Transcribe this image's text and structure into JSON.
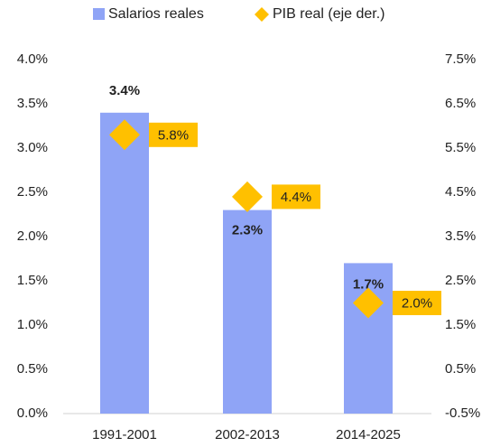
{
  "chart_data": {
    "type": "bar",
    "categories": [
      "1991-2001",
      "2002-2013",
      "2014-2025"
    ],
    "series": [
      {
        "name": "Salarios reales",
        "color": "#8fa4f6",
        "values": [
          3.4,
          2.3,
          1.7
        ],
        "value_labels": [
          "3.4%",
          "2.3%",
          "1.7%"
        ]
      },
      {
        "name": "PIB real (eje der.)",
        "color": "#ffc000",
        "type": "scatter",
        "axis": "y2",
        "values": [
          5.8,
          4.4,
          2.0
        ],
        "value_labels": [
          "5.8%",
          "4.4%",
          "2.0%"
        ]
      }
    ],
    "ylim": [
      0,
      4
    ],
    "yticks": [
      {
        "value": 0,
        "label": "0.0%"
      },
      {
        "value": 0.5,
        "label": "0.5%"
      },
      {
        "value": 1,
        "label": "1.0%"
      },
      {
        "value": 1.5,
        "label": "1.5%"
      },
      {
        "value": 2,
        "label": "2.0%"
      },
      {
        "value": 2.5,
        "label": "2.5%"
      },
      {
        "value": 3,
        "label": "3.0%"
      },
      {
        "value": 3.5,
        "label": "3.5%"
      },
      {
        "value": 4,
        "label": "4.0%"
      }
    ],
    "y2lim": [
      -0.5,
      7.5
    ],
    "y2ticks": [
      {
        "value": -0.5,
        "label": "-0.5%"
      },
      {
        "value": 0.5,
        "label": "0.5%"
      },
      {
        "value": 1.5,
        "label": "1.5%"
      },
      {
        "value": 2.5,
        "label": "2.5%"
      },
      {
        "value": 3.5,
        "label": "3.5%"
      },
      {
        "value": 4.5,
        "label": "4.5%"
      },
      {
        "value": 5.5,
        "label": "5.5%"
      },
      {
        "value": 6.5,
        "label": "6.5%"
      },
      {
        "value": 7.5,
        "label": "7.5%"
      }
    ],
    "grid": false,
    "legend": "top"
  }
}
